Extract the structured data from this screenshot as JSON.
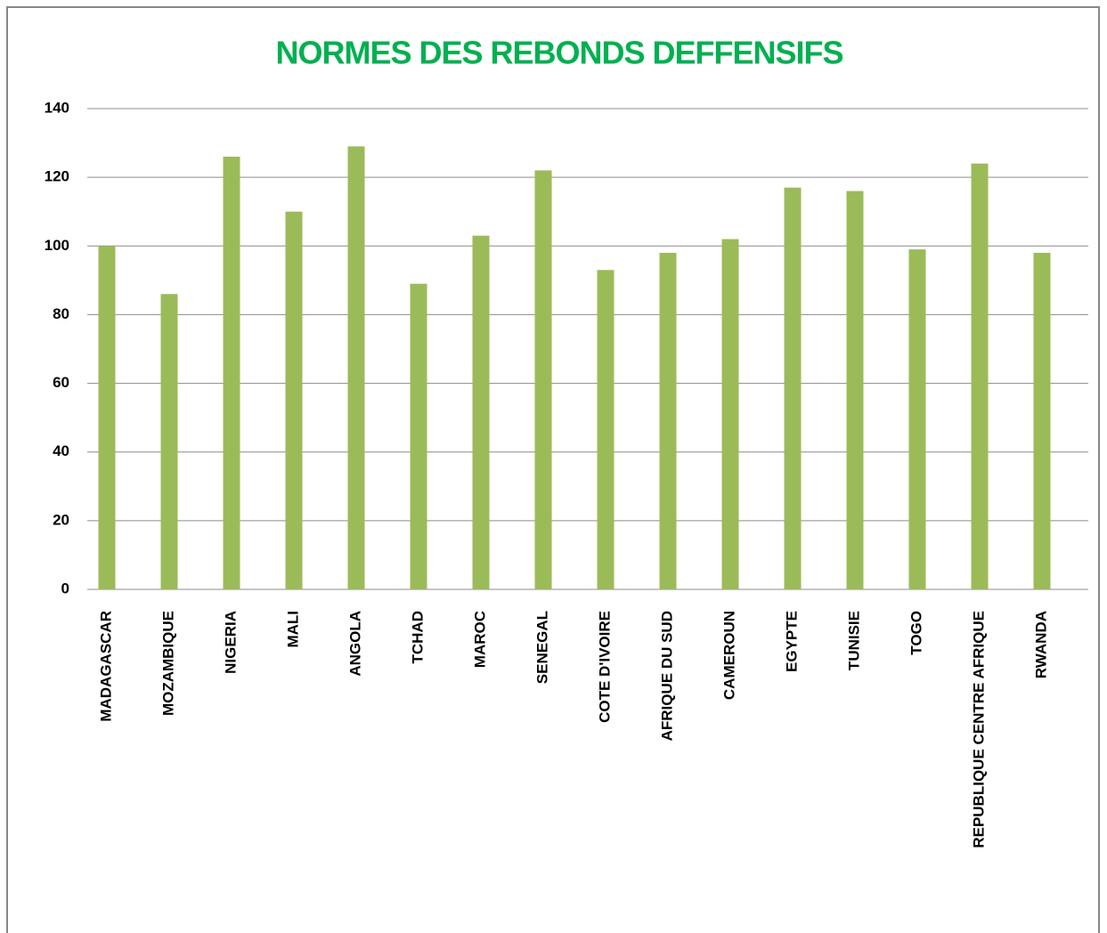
{
  "chart_data": {
    "type": "bar",
    "title": "NORMES DES REBONDS DEFFENSIFS",
    "categories": [
      "MADAGASCAR",
      "MOZAMBIQUE",
      "NIGERIA",
      "MALI",
      "ANGOLA",
      "TCHAD",
      "MAROC",
      "SENEGAL",
      "COTE D'IVOIRE",
      "AFRIQUE DU SUD",
      "CAMEROUN",
      "EGYPTE",
      "TUNISIE",
      "TOGO",
      "REPUBLIQUE CENTRE AFRIQUE",
      "RWANDA"
    ],
    "values": [
      100,
      86,
      126,
      110,
      129,
      89,
      103,
      122,
      93,
      98,
      102,
      117,
      116,
      99,
      124,
      98
    ],
    "color": "#9bbb59",
    "ylim": [
      0,
      140
    ],
    "yticks": [
      0,
      20,
      40,
      60,
      80,
      100,
      120,
      140
    ],
    "grid": true
  }
}
